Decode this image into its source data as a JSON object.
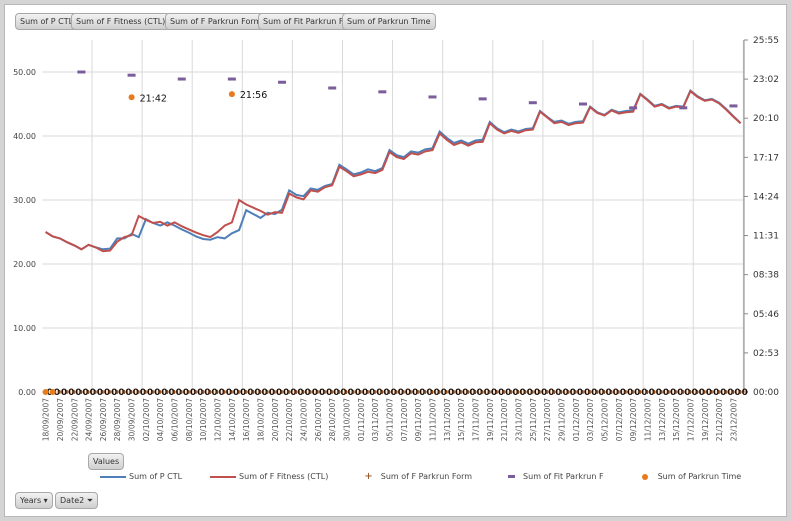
{
  "field_buttons": [
    "Sum of P CTL",
    "Sum of F Fitness (CTL)",
    "Sum of F Parkrun Form",
    "Sum of Fit Parkrun F",
    "Sum of Parkrun Time"
  ],
  "values_button": "Values",
  "axis_buttons": {
    "years": "Years",
    "date2": "Date2"
  },
  "chart_data": {
    "type": "line",
    "x_start": "18/09/2007",
    "x_end": "24/12/2007",
    "left_ylim": [
      0,
      55
    ],
    "left_ticks": [
      "0.00",
      "10.00",
      "20.00",
      "30.00",
      "40.00",
      "50.00"
    ],
    "right_ticks": [
      "00:00",
      "02:53",
      "05:46",
      "08:38",
      "11:31",
      "14:24",
      "17:17",
      "20:10",
      "23:02",
      "25:55"
    ],
    "right_ylim_seconds": [
      0,
      1555
    ],
    "grid": true,
    "legend_position": "bottom",
    "colors": {
      "p_ctl": "#4f7fb8",
      "f_fitness": "#c0504d",
      "form": "#8b4513",
      "fit_parkrun": "#7a5d9a",
      "parkrun_time": "#e87a1e"
    },
    "series": [
      {
        "name": "Sum of P CTL",
        "axis": "left",
        "values": [
          25.0,
          24.3,
          24.0,
          23.4,
          22.9,
          22.3,
          23.0,
          22.6,
          22.3,
          22.4,
          24.0,
          24.0,
          24.7,
          24.2,
          27.0,
          26.4,
          26.0,
          26.5,
          26.0,
          25.4,
          24.9,
          24.3,
          23.9,
          23.8,
          24.2,
          24.0,
          24.8,
          25.3,
          28.4,
          27.8,
          27.2,
          28.0,
          27.8,
          28.5,
          31.5,
          30.8,
          30.6,
          31.8,
          31.6,
          32.2,
          32.5,
          35.5,
          34.8,
          34.0,
          34.3,
          34.8,
          34.5,
          35.0,
          37.8,
          37.0,
          36.7,
          37.6,
          37.4,
          37.9,
          38.1,
          40.7,
          39.7,
          38.9,
          39.3,
          38.8,
          39.3,
          39.4,
          42.2,
          41.2,
          40.6,
          41.0,
          40.7,
          41.1,
          41.2,
          43.9,
          43.0,
          42.2,
          42.4,
          41.9,
          42.2,
          42.3,
          44.6,
          43.7,
          43.3,
          44.1,
          43.7,
          43.9,
          44.0,
          46.6,
          45.7,
          44.7,
          45.0,
          44.4,
          44.7,
          44.6,
          47.1,
          46.2,
          45.6,
          45.8,
          45.2,
          44.2,
          43.1,
          42.0
        ]
      },
      {
        "name": "Sum of F Fitness (CTL)",
        "axis": "left",
        "values": [
          25.0,
          24.3,
          24.0,
          23.4,
          22.9,
          22.3,
          23.0,
          22.6,
          22.0,
          22.1,
          23.5,
          24.2,
          24.5,
          27.5,
          26.9,
          26.4,
          26.6,
          26.0,
          26.5,
          25.9,
          25.4,
          24.9,
          24.5,
          24.2,
          25.0,
          26.0,
          26.5,
          30.0,
          29.3,
          28.8,
          28.3,
          27.7,
          28.1,
          28.0,
          31.0,
          30.4,
          30.1,
          31.5,
          31.3,
          32.0,
          32.3,
          35.2,
          34.5,
          33.7,
          34.0,
          34.4,
          34.2,
          34.7,
          37.5,
          36.7,
          36.4,
          37.3,
          37.1,
          37.6,
          37.8,
          40.4,
          39.4,
          38.6,
          39.0,
          38.5,
          39.0,
          39.1,
          42.0,
          41.0,
          40.4,
          40.8,
          40.5,
          40.9,
          41.0,
          43.8,
          42.9,
          42.0,
          42.2,
          41.7,
          42.0,
          42.1,
          44.5,
          43.6,
          43.2,
          44.0,
          43.5,
          43.7,
          43.8,
          46.5,
          45.6,
          44.6,
          44.9,
          44.3,
          44.6,
          44.5,
          47.0,
          46.1,
          45.5,
          45.7,
          45.1,
          44.1,
          43.0,
          42.0
        ]
      },
      {
        "name": "Sum of F Parkrun Form",
        "axis": "left",
        "marker": "plus",
        "constant_value": 0,
        "data_label": "0"
      },
      {
        "name": "Sum of Fit Parkrun F",
        "axis": "left",
        "marker": "dash",
        "points": [
          {
            "day": 5,
            "value": 50.0
          },
          {
            "day": 12,
            "value": 49.5
          },
          {
            "day": 19,
            "value": 48.9
          },
          {
            "day": 26,
            "value": 48.9
          },
          {
            "day": 33,
            "value": 48.4
          },
          {
            "day": 40,
            "value": 47.5
          },
          {
            "day": 47,
            "value": 46.9
          },
          {
            "day": 54,
            "value": 46.1
          },
          {
            "day": 61,
            "value": 45.8
          },
          {
            "day": 68,
            "value": 45.2
          },
          {
            "day": 75,
            "value": 45.0
          },
          {
            "day": 82,
            "value": 44.4
          },
          {
            "day": 89,
            "value": 44.4
          },
          {
            "day": 96,
            "value": 44.7
          }
        ]
      },
      {
        "name": "Sum of Parkrun Time",
        "axis": "right",
        "marker": "circle",
        "points": [
          {
            "day": 12,
            "seconds": 1302,
            "label": "21:42"
          },
          {
            "day": 26,
            "seconds": 1316,
            "label": "21:56"
          },
          {
            "day": 0,
            "seconds": 0
          },
          {
            "day": 1,
            "seconds": 0
          }
        ]
      }
    ]
  }
}
